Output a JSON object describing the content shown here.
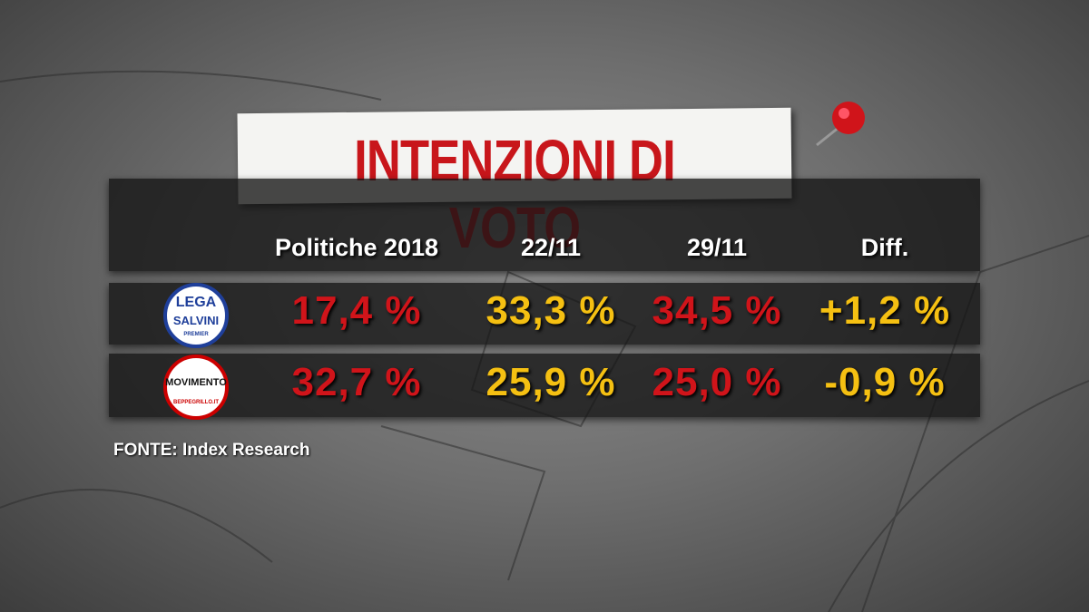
{
  "title": "INTENZIONI DI VOTO",
  "table": {
    "header": [
      "Politiche 2018",
      "22/11",
      "29/11",
      "Diff."
    ],
    "rows": [
      {
        "logo": [
          "LEGA",
          "SALVINI",
          "PREMIER"
        ],
        "cells": [
          "17,4 %",
          "33,3 %",
          "34,5 %",
          "+1,2 %"
        ]
      },
      {
        "logo": [
          "MOVIMENTO",
          "BEPPEGRILLO.IT"
        ],
        "cells": [
          "32,7 %",
          "25,9 %",
          "25,0 %",
          "-0,9 %"
        ]
      }
    ]
  },
  "source": "FONTE:  Index Research"
}
